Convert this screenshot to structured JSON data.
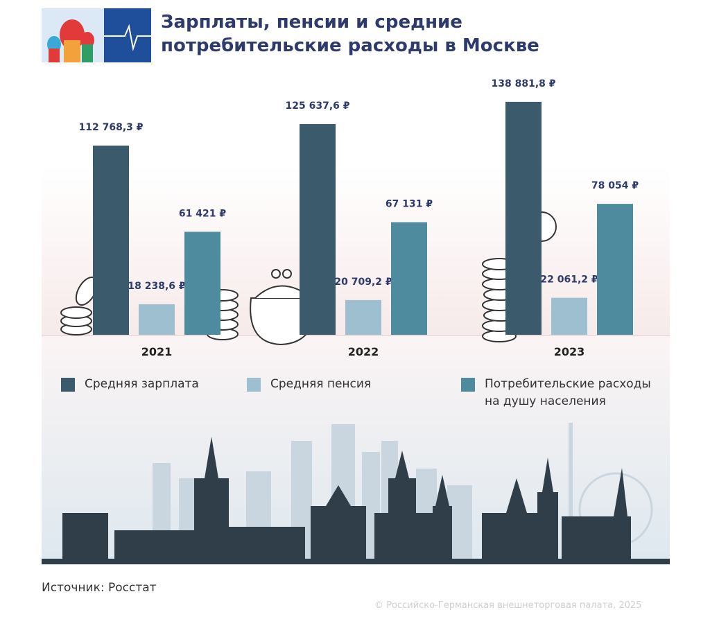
{
  "chart_data": {
    "type": "bar",
    "title": "Зарплаты, пенсии и средние потребительские расходы в Москве",
    "categories": [
      "2021",
      "2022",
      "2023"
    ],
    "series": [
      {
        "name": "Средняя зарплата",
        "color": "#3b5b6d",
        "values": [
          112768.3,
          125637.6,
          138881.8
        ],
        "value_labels": [
          "112 768,3 ₽",
          "125 637,6 ₽",
          "138 881,8 ₽"
        ]
      },
      {
        "name": "Средняя пенсия",
        "color": "#9ebfcf",
        "values": [
          18238.6,
          20709.2,
          22061.2
        ],
        "value_labels": [
          "18 238,6 ₽",
          "20 709,2 ₽",
          "22 061,2 ₽"
        ]
      },
      {
        "name": "Потребительские расходы на душу населения",
        "color": "#4f8b9f",
        "values": [
          61421,
          67131,
          78054
        ],
        "value_labels": [
          "61 421 ₽",
          "67 131 ₽",
          "78 054 ₽"
        ]
      }
    ],
    "source": "Источник: Росстат",
    "copyright": "© Российско-Германская внешнеторговая палата, 2025"
  }
}
